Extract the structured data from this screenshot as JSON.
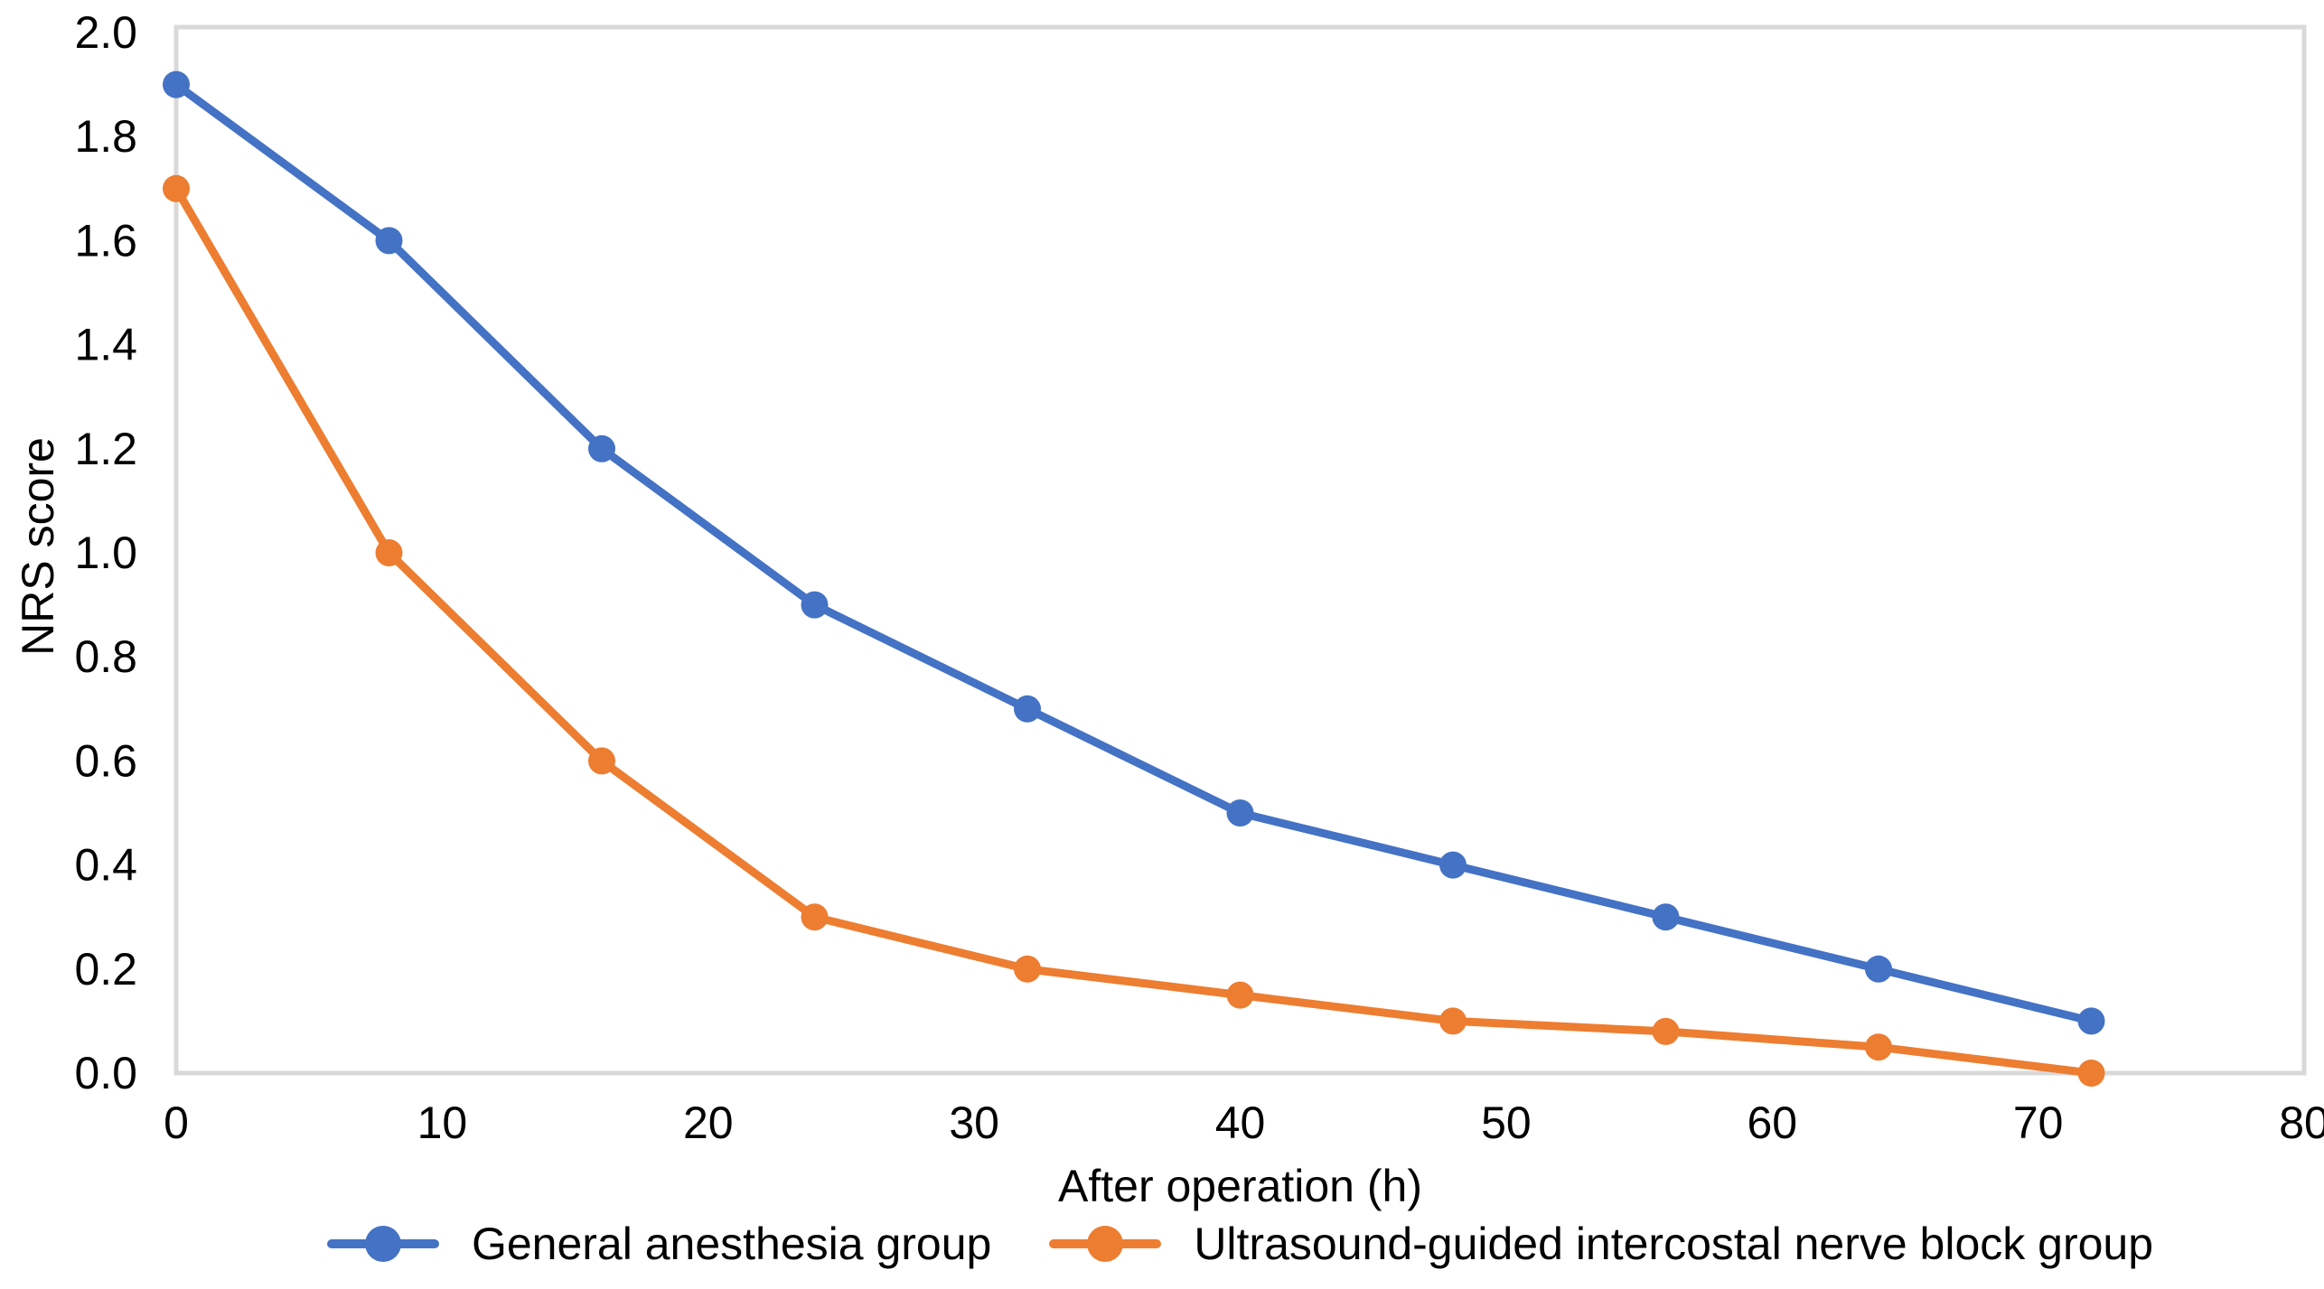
{
  "chart_data": {
    "type": "line",
    "x": [
      0,
      8,
      16,
      24,
      32,
      40,
      48,
      56,
      64,
      72
    ],
    "series": [
      {
        "name": "General anesthesia group",
        "color": "#4472C4",
        "values": [
          1.9,
          1.6,
          1.2,
          0.9,
          0.7,
          0.5,
          0.4,
          0.3,
          0.2,
          0.1
        ]
      },
      {
        "name": "Ultrasound-guided intercostal nerve block group",
        "color": "#ED7D31",
        "values": [
          1.7,
          1.0,
          0.6,
          0.3,
          0.2,
          0.15,
          0.1,
          0.08,
          0.05,
          0.0
        ]
      }
    ],
    "title": "",
    "xlabel": "After operation (h)",
    "ylabel": "NRS score",
    "xlim": [
      0,
      80
    ],
    "ylim": [
      0.0,
      2.0
    ],
    "x_ticks": [
      "0",
      "10",
      "20",
      "30",
      "40",
      "50",
      "60",
      "70",
      "80"
    ],
    "y_ticks": [
      "0.0",
      "0.2",
      "0.4",
      "0.6",
      "0.8",
      "1.0",
      "1.2",
      "1.4",
      "1.6",
      "1.8",
      "2.0"
    ],
    "grid": false,
    "legend_position": "bottom",
    "marker": "circle",
    "axis_color": "#D9D9D9",
    "text_color": "#000000",
    "background_color": "#FFFFFF"
  }
}
